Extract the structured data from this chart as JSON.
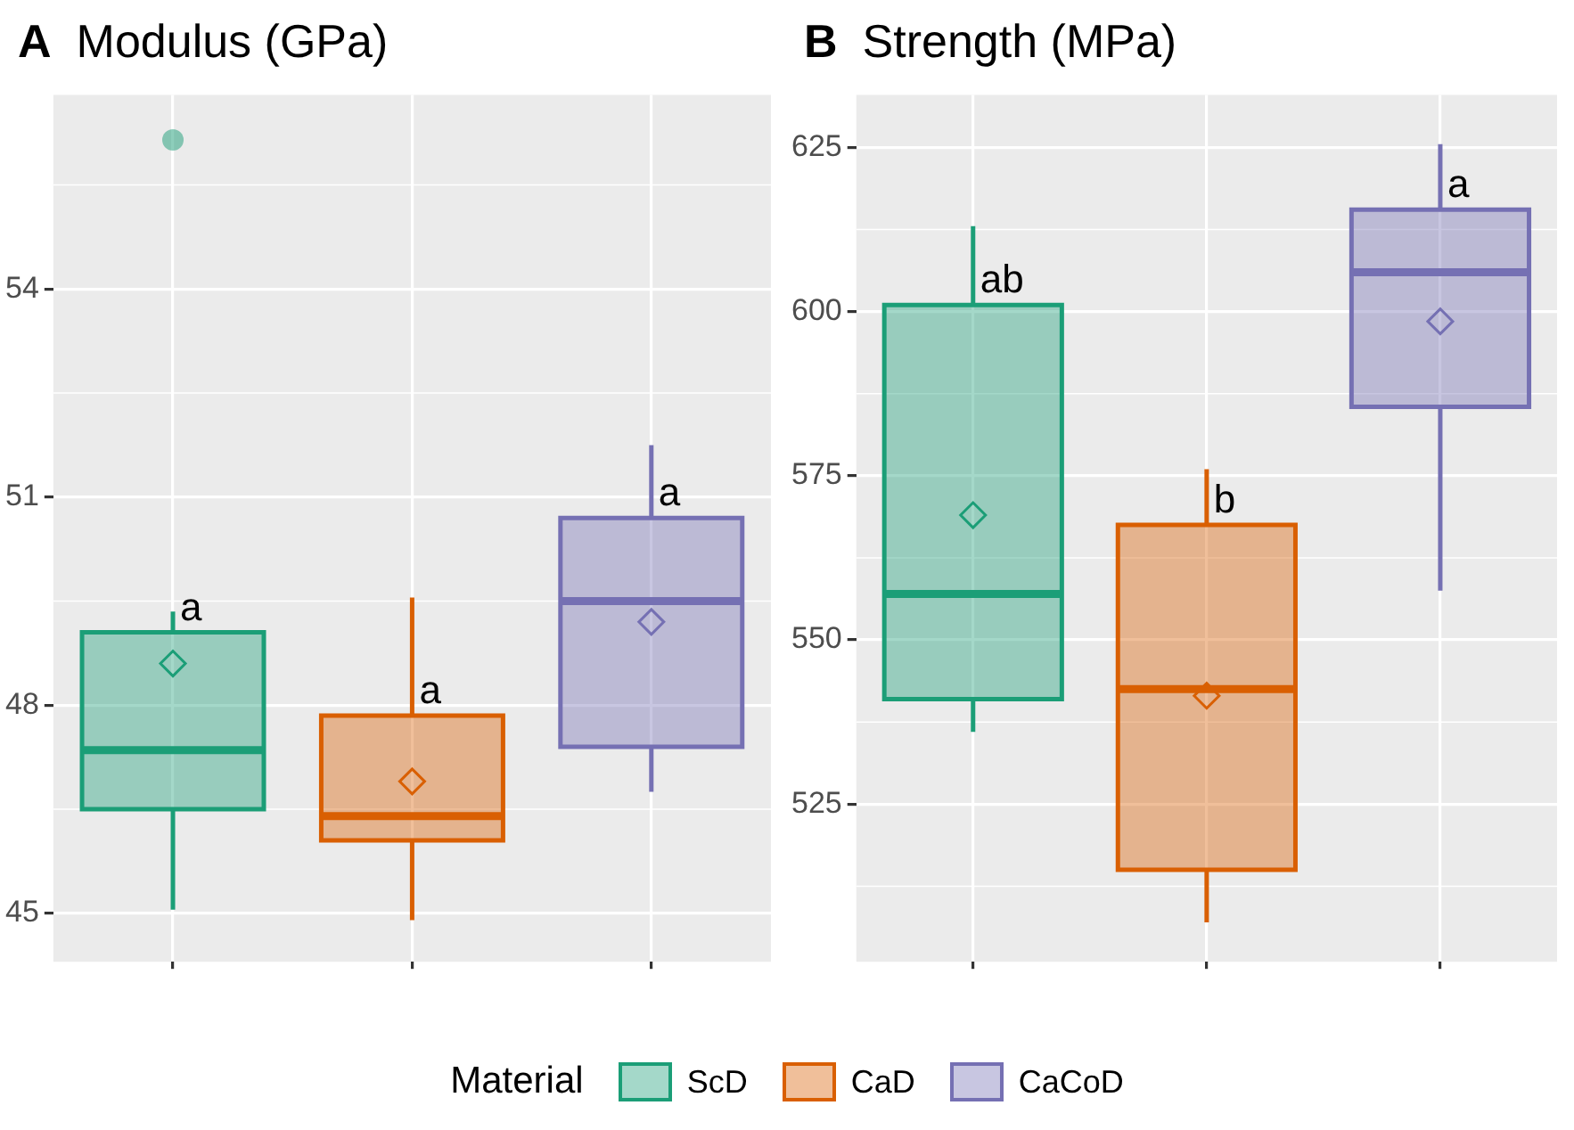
{
  "chart_data": [
    {
      "type": "box",
      "title": "Modulus (GPa)",
      "categories": [
        null,
        null,
        null
      ],
      "ylim": [
        44.3,
        56.8
      ],
      "yticks": [
        45,
        48,
        51,
        54
      ],
      "grid": true,
      "marker": "diamond",
      "legend": "bottom",
      "legend_title": "Material",
      "annotations": [
        "A",
        "a",
        "a",
        "a"
      ],
      "series": [
        {
          "name": "ScD",
          "color": "#1b9e77",
          "boxes": [
            {
              "low": 45.05,
              "q1": 46.5,
              "median": 47.35,
              "q3": 49.05,
              "high": 49.35,
              "mean": 48.6,
              "outliers": [
                56.15
              ]
            },
            null,
            null
          ]
        },
        {
          "name": "CaD",
          "color": "#d95f02",
          "boxes": [
            null,
            {
              "low": 44.9,
              "q1": 46.05,
              "median": 46.4,
              "q3": 47.85,
              "high": 49.55,
              "mean": 46.9
            },
            null
          ]
        },
        {
          "name": "CaCoD",
          "color": "#7570b3",
          "boxes": [
            null,
            null,
            {
              "low": 46.75,
              "q1": 47.4,
              "median": 49.5,
              "q3": 50.7,
              "high": 51.75,
              "mean": 49.2
            }
          ]
        }
      ]
    },
    {
      "type": "box",
      "title": "Strength (MPa)",
      "categories": [
        null,
        null,
        null
      ],
      "ylim": [
        501,
        633
      ],
      "yticks": [
        525,
        550,
        575,
        600,
        625
      ],
      "grid": true,
      "marker": "diamond",
      "annotations": [
        "B",
        "ab",
        "b",
        "a"
      ],
      "series": [
        {
          "color": "#1b9e77",
          "boxes": [
            {
              "low": 536,
              "q1": 541,
              "median": 557,
              "q3": 601,
              "high": 613,
              "mean": 569
            },
            null,
            null
          ]
        },
        {
          "color": "#d95f02",
          "boxes": [
            null,
            {
              "low": 507,
              "q1": 515,
              "median": 542.5,
              "q3": 567.5,
              "high": 576,
              "mean": 541.5
            },
            null
          ]
        },
        {
          "color": "#7570b3",
          "boxes": [
            null,
            null,
            {
              "low": 557.5,
              "q1": 585.5,
              "median": 606,
              "q3": 615.5,
              "high": 625.5,
              "mean": 598.5
            }
          ]
        }
      ]
    }
  ]
}
